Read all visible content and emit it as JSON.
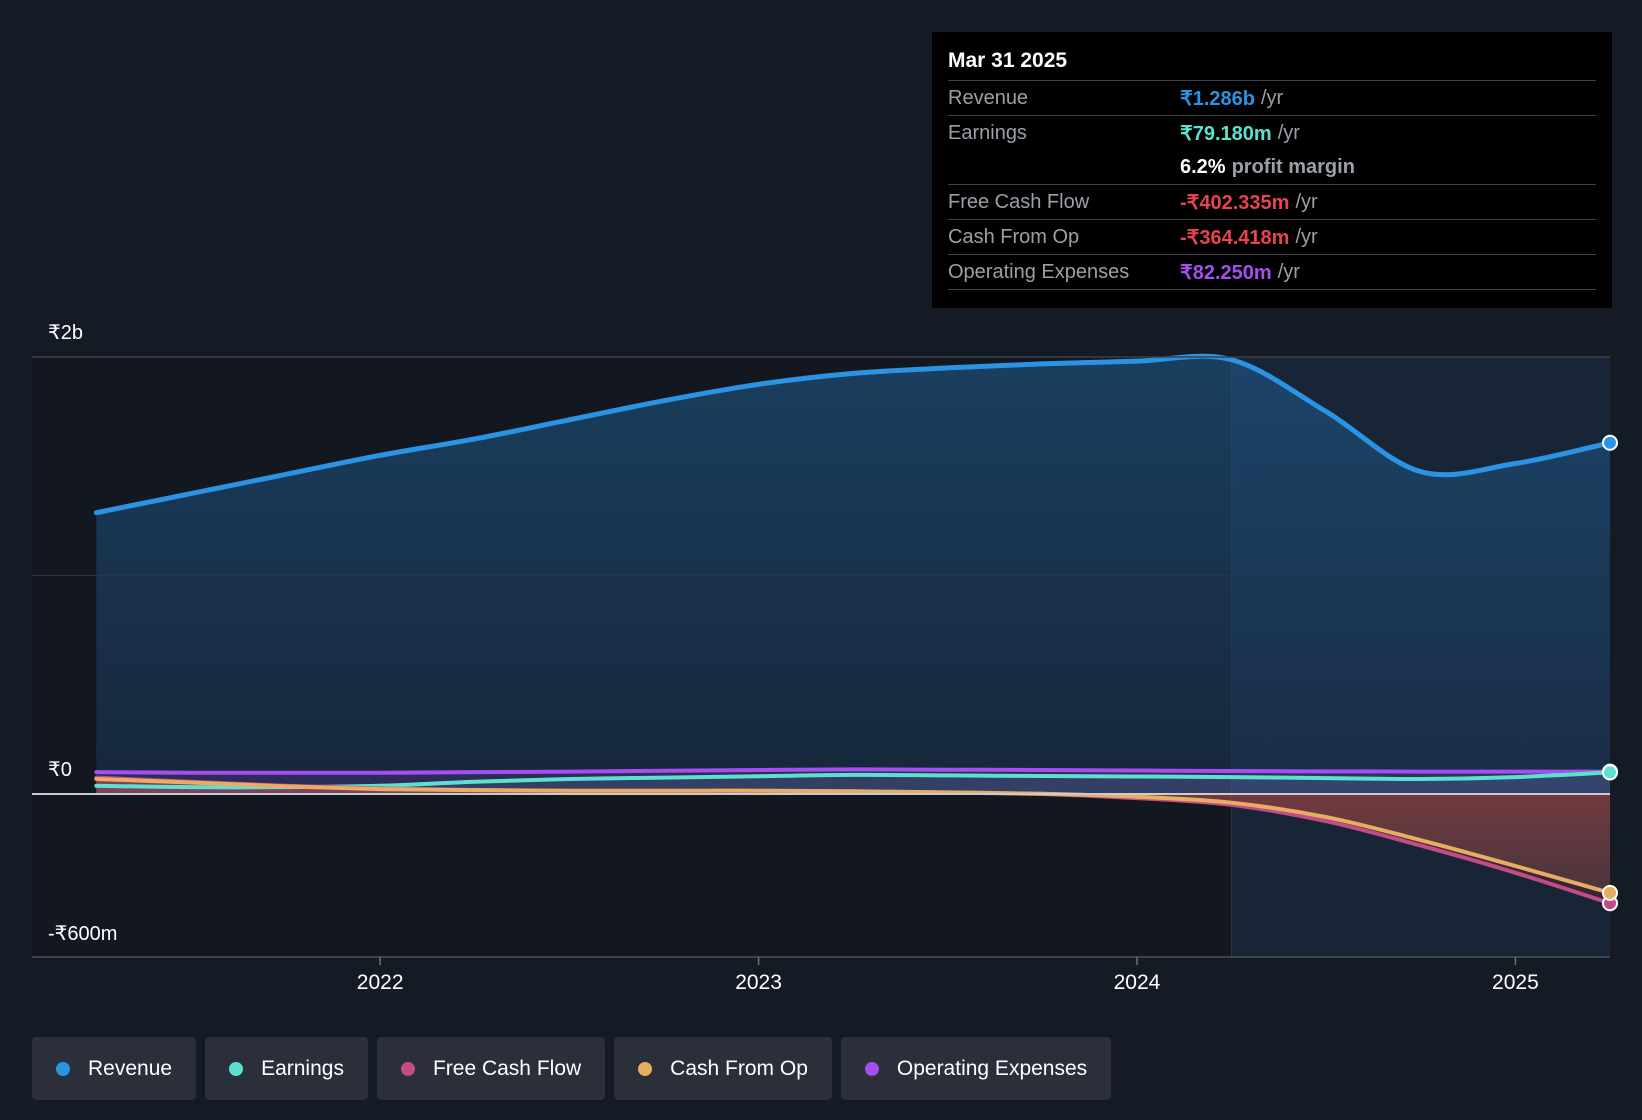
{
  "colors": {
    "revenue": "#2b93e3",
    "earnings": "#5ce0cf",
    "free_cash_flow": "#c24c85",
    "cash_from_op": "#e6ad63",
    "operating_expenses": "#a54ff0",
    "background": "#151b24"
  },
  "tooltip": {
    "date": "Mar 31 2025",
    "rows": [
      {
        "label": "Revenue",
        "value": "₹1.286b",
        "unit": "/yr",
        "color": "#2b93e3"
      },
      {
        "label": "Earnings",
        "value": "₹79.180m",
        "unit": "/yr",
        "color": "#5ce0cf"
      },
      {
        "label": "",
        "value": "6.2%",
        "unit": "profit margin",
        "color": "#ffffff"
      },
      {
        "label": "Free Cash Flow",
        "value": "-₹402.335m",
        "unit": "/yr",
        "color": "#e8434f"
      },
      {
        "label": "Cash From Op",
        "value": "-₹364.418m",
        "unit": "/yr",
        "color": "#e8434f"
      },
      {
        "label": "Operating Expenses",
        "value": "₹82.250m",
        "unit": "/yr",
        "color": "#a54ff0"
      }
    ]
  },
  "legend": [
    {
      "label": "Revenue",
      "color": "#2b93e3"
    },
    {
      "label": "Earnings",
      "color": "#5ce0cf"
    },
    {
      "label": "Free Cash Flow",
      "color": "#c24c85"
    },
    {
      "label": "Cash From Op",
      "color": "#e6ad63"
    },
    {
      "label": "Operating Expenses",
      "color": "#a54ff0"
    }
  ],
  "chart_data": {
    "type": "area",
    "title": "",
    "xlabel": "",
    "ylabel": "",
    "y_tick_labels": [
      "₹2b",
      "₹0",
      "-₹600m"
    ],
    "y_ticks": [
      1600,
      0,
      -600
    ],
    "ylim": [
      -600,
      1600
    ],
    "xlim": [
      2021.08,
      2025.25
    ],
    "x_ticks": [
      2022,
      2023,
      2024,
      2025
    ],
    "x_tick_labels": [
      "2022",
      "2023",
      "2024",
      "2025"
    ],
    "highlight_start": 2024.25,
    "grid": true,
    "legend_position": "bottom",
    "series": [
      {
        "name": "Revenue",
        "x": [
          2021.25,
          2021.5,
          2021.75,
          2022.0,
          2022.25,
          2022.5,
          2022.75,
          2023.0,
          2023.25,
          2023.5,
          2023.75,
          2024.0,
          2024.25,
          2024.5,
          2024.75,
          2025.0,
          2025.25
        ],
        "values": [
          1030,
          1100,
          1170,
          1240,
          1300,
          1370,
          1440,
          1500,
          1540,
          1560,
          1575,
          1585,
          1590,
          1400,
          1180,
          1210,
          1286
        ]
      },
      {
        "name": "Earnings",
        "x": [
          2021.25,
          2021.5,
          2021.75,
          2022.0,
          2022.25,
          2022.5,
          2022.75,
          2023.0,
          2023.25,
          2023.5,
          2023.75,
          2024.0,
          2024.25,
          2024.5,
          2024.75,
          2025.0,
          2025.25
        ],
        "values": [
          30,
          25,
          25,
          30,
          45,
          55,
          60,
          65,
          70,
          68,
          66,
          64,
          62,
          58,
          55,
          62,
          79
        ]
      },
      {
        "name": "Free Cash Flow",
        "x": [
          2021.25,
          2021.5,
          2021.75,
          2022.0,
          2022.25,
          2022.5,
          2022.75,
          2023.0,
          2023.25,
          2023.5,
          2023.75,
          2024.0,
          2024.25,
          2024.5,
          2024.75,
          2025.0,
          2025.25
        ],
        "values": [
          60,
          45,
          30,
          20,
          15,
          12,
          12,
          12,
          10,
          5,
          0,
          -15,
          -40,
          -100,
          -190,
          -290,
          -402
        ]
      },
      {
        "name": "Cash From Op",
        "x": [
          2021.25,
          2021.5,
          2021.75,
          2022.0,
          2022.25,
          2022.5,
          2022.75,
          2023.0,
          2023.25,
          2023.5,
          2023.75,
          2024.0,
          2024.25,
          2024.5,
          2024.75,
          2025.0,
          2025.25
        ],
        "values": [
          55,
          42,
          28,
          18,
          14,
          12,
          12,
          12,
          10,
          6,
          1,
          -10,
          -32,
          -85,
          -170,
          -265,
          -364
        ]
      },
      {
        "name": "Operating Expenses",
        "x": [
          2021.25,
          2021.5,
          2021.75,
          2022.0,
          2022.25,
          2022.5,
          2022.75,
          2023.0,
          2023.25,
          2023.5,
          2023.75,
          2024.0,
          2024.25,
          2024.5,
          2024.75,
          2025.0,
          2025.25
        ],
        "values": [
          80,
          78,
          78,
          78,
          80,
          82,
          85,
          88,
          90,
          89,
          88,
          86,
          84,
          83,
          82,
          82,
          82
        ]
      }
    ]
  }
}
